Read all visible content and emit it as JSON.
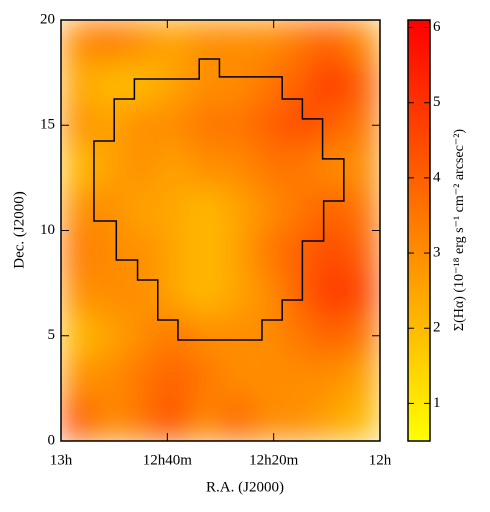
{
  "chart_data": {
    "type": "heatmap",
    "xlabel": "R.A. (J2000)",
    "ylabel": "Dec. (J2000)",
    "colorbar_label": "Σ(Hα) (10⁻¹⁸ erg s⁻¹ cm⁻² arcsec⁻²)",
    "x": [
      194.25,
      192.75,
      191.25,
      189.75,
      188.25,
      186.75,
      185.25,
      183.75,
      182.25,
      180.75
    ],
    "y": [
      19,
      17,
      15,
      13,
      11,
      9,
      7,
      5,
      3,
      1
    ],
    "values": [
      [
        3,
        3.5,
        3,
        2.5,
        3,
        3,
        3,
        3.5,
        4,
        3
      ],
      [
        2.5,
        2,
        2,
        2.5,
        3,
        3,
        3.5,
        4,
        5,
        4
      ],
      [
        3,
        2.5,
        3,
        3,
        3.5,
        3.5,
        4,
        4.5,
        4,
        3.5
      ],
      [
        2,
        2.5,
        3,
        2.5,
        3,
        3,
        3.5,
        3.5,
        3,
        3
      ],
      [
        3,
        3,
        2.5,
        2.5,
        2,
        2.5,
        3,
        3.5,
        4,
        3.5
      ],
      [
        3.5,
        3,
        3,
        2.5,
        2,
        2.5,
        3.5,
        4,
        4.5,
        4
      ],
      [
        3,
        3,
        3,
        2.5,
        2,
        2.5,
        3,
        4,
        5,
        4.5
      ],
      [
        2,
        2.5,
        3,
        3.5,
        3,
        3,
        3,
        3.5,
        4,
        3.5
      ],
      [
        3,
        3,
        3.5,
        4,
        3.5,
        3,
        3,
        3,
        3,
        2.5
      ],
      [
        4.5,
        3,
        3.5,
        4.5,
        3,
        4,
        3,
        3,
        2.5,
        2
      ]
    ],
    "outline": {
      "x": [
        188.5,
        187.55,
        187.55,
        184.6,
        184.6,
        183.65,
        183.65,
        182.7,
        182.7,
        181.7,
        181.7,
        182.65,
        182.65,
        183.65,
        183.65,
        184.6,
        184.6,
        185.55,
        185.55,
        189.5,
        189.5,
        190.45,
        190.45,
        191.4,
        191.4,
        192.4,
        192.4,
        193.45,
        193.45,
        192.5,
        192.5,
        191.55,
        191.55,
        188.5
      ],
      "y": [
        18.15,
        18.15,
        17.3,
        17.3,
        16.25,
        16.25,
        15.3,
        15.3,
        13.4,
        13.4,
        11.4,
        11.4,
        9.5,
        9.5,
        6.7,
        6.7,
        5.75,
        5.75,
        4.8,
        4.8,
        5.75,
        5.75,
        7.65,
        7.65,
        8.6,
        8.6,
        10.45,
        10.45,
        14.25,
        14.25,
        16.25,
        16.25,
        17.2,
        17.2
      ],
      "color": "#000000"
    },
    "xlim": [
      195,
      180
    ],
    "ylim": [
      0,
      20
    ],
    "xticks": [
      {
        "value": 195,
        "label": "13h"
      },
      {
        "value": 190,
        "label": "12h40m"
      },
      {
        "value": 185,
        "label": "12h20m"
      },
      {
        "value": 180,
        "label": "12h"
      }
    ],
    "yticks": [
      0,
      5,
      10,
      15,
      20
    ],
    "clim": [
      0.5,
      6.1
    ],
    "cticks": [
      1,
      2,
      3,
      4,
      5,
      6
    ],
    "colormap": [
      "#ffff00",
      "#ff0000"
    ]
  }
}
